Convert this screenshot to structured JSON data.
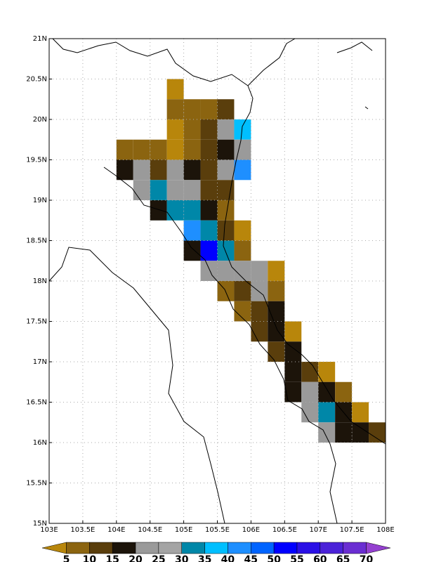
{
  "chart_data": {
    "type": "heatmap",
    "xlim": [
      103,
      108
    ],
    "ylim": [
      15,
      21
    ],
    "xticks": [
      {
        "value": 103,
        "label": "103E"
      },
      {
        "value": 103.5,
        "label": "103.5E"
      },
      {
        "value": 104,
        "label": "104E"
      },
      {
        "value": 104.5,
        "label": "104.5E"
      },
      {
        "value": 105,
        "label": "105E"
      },
      {
        "value": 105.5,
        "label": "105.5E"
      },
      {
        "value": 106,
        "label": "106E"
      },
      {
        "value": 106.5,
        "label": "106.5E"
      },
      {
        "value": 107,
        "label": "107E"
      },
      {
        "value": 107.5,
        "label": "107.5E"
      },
      {
        "value": 108,
        "label": "108E"
      }
    ],
    "yticks": [
      {
        "value": 15,
        "label": "15N"
      },
      {
        "value": 15.5,
        "label": "15.5N"
      },
      {
        "value": 16,
        "label": "16N"
      },
      {
        "value": 16.5,
        "label": "16.5N"
      },
      {
        "value": 17,
        "label": "17N"
      },
      {
        "value": 17.5,
        "label": "17.5N"
      },
      {
        "value": 18,
        "label": "18N"
      },
      {
        "value": 18.5,
        "label": "18.5N"
      },
      {
        "value": 19,
        "label": "19N"
      },
      {
        "value": 19.5,
        "label": "19.5N"
      },
      {
        "value": 20,
        "label": "20N"
      },
      {
        "value": 20.5,
        "label": "20.5N"
      },
      {
        "value": 21,
        "label": "21N"
      }
    ],
    "grid": true,
    "colorbar": {
      "levels": [
        5,
        10,
        15,
        20,
        25,
        30,
        35,
        40,
        45,
        50,
        55,
        60,
        65,
        70
      ],
      "colors": [
        "#b8860b",
        "#8b6410",
        "#5a3e0c",
        "#1c140a",
        "#9a9a9a",
        "#a4a4a4",
        "#0087a8",
        "#00bfff",
        "#1e8fff",
        "#0064ff",
        "#0000ff",
        "#2a10e6",
        "#4b22d8",
        "#6a2ed2",
        "#9440d0"
      ]
    },
    "cells": [
      [
        104.75,
        20.25,
        3
      ],
      [
        104.75,
        20,
        7
      ],
      [
        105,
        20,
        7
      ],
      [
        105.25,
        20,
        7
      ],
      [
        105.5,
        20,
        12
      ],
      [
        104.75,
        19.75,
        3
      ],
      [
        105,
        19.75,
        7
      ],
      [
        105.25,
        19.75,
        12
      ],
      [
        105.5,
        19.75,
        22
      ],
      [
        105.75,
        19.75,
        37
      ],
      [
        104,
        19.5,
        7
      ],
      [
        104.25,
        19.5,
        7
      ],
      [
        104.5,
        19.5,
        7
      ],
      [
        104.75,
        19.5,
        3
      ],
      [
        105,
        19.5,
        7
      ],
      [
        105.25,
        19.5,
        12
      ],
      [
        105.5,
        19.5,
        17
      ],
      [
        105.75,
        19.5,
        22
      ],
      [
        104,
        19.25,
        17
      ],
      [
        104.25,
        19.25,
        22
      ],
      [
        104.5,
        19.25,
        12
      ],
      [
        104.75,
        19.25,
        22
      ],
      [
        105,
        19.25,
        17
      ],
      [
        105.25,
        19.25,
        12
      ],
      [
        105.5,
        19.25,
        22
      ],
      [
        105.75,
        19.25,
        42
      ],
      [
        104.25,
        19,
        22
      ],
      [
        104.5,
        19,
        32
      ],
      [
        104.75,
        19,
        22
      ],
      [
        105,
        19,
        22
      ],
      [
        105.25,
        19,
        12
      ],
      [
        105.5,
        19,
        12
      ],
      [
        104.5,
        18.75,
        17
      ],
      [
        104.75,
        18.75,
        32
      ],
      [
        105,
        18.75,
        32
      ],
      [
        105.25,
        18.75,
        17
      ],
      [
        105.5,
        18.75,
        7
      ],
      [
        105,
        18.5,
        42
      ],
      [
        105.25,
        18.5,
        32
      ],
      [
        105.5,
        18.5,
        12
      ],
      [
        105.75,
        18.5,
        3
      ],
      [
        105,
        18.25,
        17
      ],
      [
        105.25,
        18.25,
        52
      ],
      [
        105.5,
        18.25,
        32
      ],
      [
        105.75,
        18.25,
        7
      ],
      [
        105.25,
        18,
        22
      ],
      [
        105.5,
        18,
        22
      ],
      [
        105.75,
        18,
        22
      ],
      [
        106,
        18,
        22
      ],
      [
        106.25,
        18,
        3
      ],
      [
        105.5,
        17.75,
        7
      ],
      [
        105.75,
        17.75,
        12
      ],
      [
        106,
        17.75,
        22
      ],
      [
        106.25,
        17.75,
        7
      ],
      [
        105.75,
        17.5,
        7
      ],
      [
        106,
        17.5,
        12
      ],
      [
        106.25,
        17.5,
        17
      ],
      [
        106,
        17.25,
        12
      ],
      [
        106.25,
        17.25,
        17
      ],
      [
        106.5,
        17.25,
        3
      ],
      [
        106.25,
        17,
        12
      ],
      [
        106.5,
        17,
        17
      ],
      [
        106.5,
        16.75,
        17
      ],
      [
        106.75,
        16.75,
        12
      ],
      [
        107,
        16.75,
        3
      ],
      [
        106.5,
        16.5,
        17
      ],
      [
        106.75,
        16.5,
        22
      ],
      [
        107,
        16.5,
        17
      ],
      [
        107.25,
        16.5,
        7
      ],
      [
        106.75,
        16.25,
        22
      ],
      [
        107,
        16.25,
        32
      ],
      [
        107.25,
        16.25,
        17
      ],
      [
        107.5,
        16.25,
        3
      ],
      [
        107,
        16,
        22
      ],
      [
        107.25,
        16,
        17
      ],
      [
        107.5,
        16,
        17
      ],
      [
        107.75,
        16,
        12
      ]
    ]
  }
}
